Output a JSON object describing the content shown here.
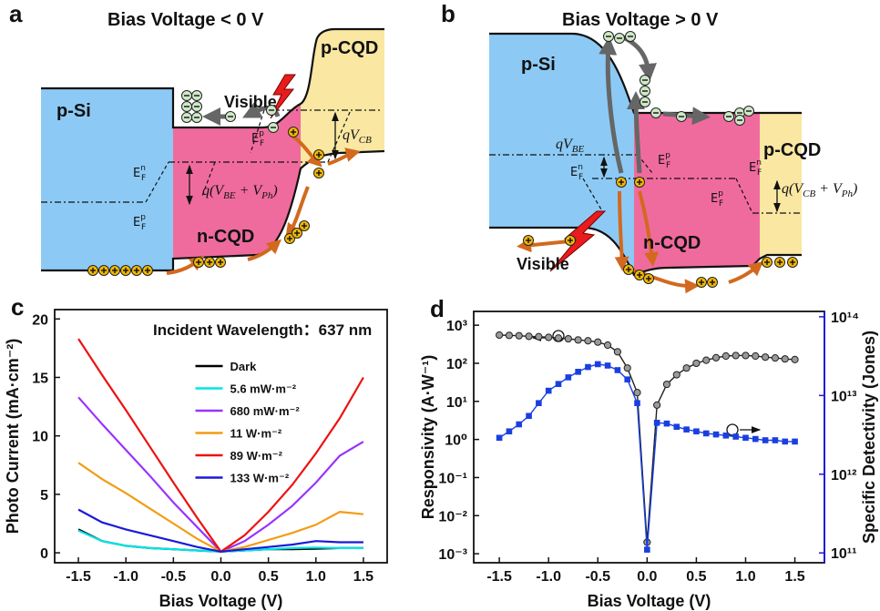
{
  "diagrams": [
    {
      "label": "a",
      "title": "Bias Voltage < 0 V",
      "regions": [
        "p-Si",
        "n-CQD",
        "p-CQD"
      ],
      "light": "Visible",
      "levels": [
        {
          "base": "E",
          "sup": "n",
          "sub": "F"
        },
        {
          "base": "E",
          "sup": "p",
          "sub": "F"
        },
        {
          "base": "E",
          "sup": "p",
          "sub": "F"
        }
      ],
      "voltages": [
        [
          "qV",
          "CB"
        ],
        [
          "q(V",
          "BE",
          " + V",
          "Ph",
          ")"
        ]
      ]
    },
    {
      "label": "b",
      "title": "Bias Voltage > 0 V",
      "regions": [
        "p-Si",
        "n-CQD",
        "p-CQD"
      ],
      "light": "Visible",
      "levels": [
        {
          "base": "E",
          "sup": "n",
          "sub": "F"
        },
        {
          "base": "E",
          "sup": "p",
          "sub": "F"
        },
        {
          "base": "E",
          "sup": "n",
          "sub": "F"
        },
        {
          "base": "E",
          "sup": "p",
          "sub": "F"
        }
      ],
      "voltages": [
        [
          "qV",
          "BE"
        ],
        [
          "q(V",
          "CB",
          " + V",
          "Ph",
          ")"
        ]
      ]
    }
  ],
  "chart_data": [
    {
      "type": "line",
      "label": "c",
      "title": "Incident Wavelength：637 nm",
      "x_label": "Bias Voltage (V)",
      "y_label": "Photo Current (mA·cm⁻²)",
      "x": [
        -1.5,
        -1.25,
        -1,
        -0.75,
        -0.5,
        -0.25,
        0,
        0.25,
        0.5,
        0.75,
        1,
        1.25,
        1.5
      ],
      "series": [
        {
          "name": "Dark",
          "color": "#000000",
          "values": [
            2.0,
            1.0,
            0.6,
            0.4,
            0.3,
            0.2,
            0.1,
            0.2,
            0.3,
            0.3,
            0.35,
            0.4,
            0.4
          ]
        },
        {
          "name": "5.6 mW·m⁻²",
          "color": "#00e5e5",
          "values": [
            1.9,
            1.0,
            0.6,
            0.4,
            0.3,
            0.2,
            0.1,
            0.2,
            0.3,
            0.4,
            0.45,
            0.4,
            0.4
          ]
        },
        {
          "name": "680 mW·m⁻²",
          "color": "#9933ff",
          "values": [
            13.3,
            11.0,
            8.8,
            6.6,
            4.3,
            2.2,
            0.1,
            1.0,
            2.4,
            4.0,
            6.0,
            8.3,
            9.5
          ]
        },
        {
          "name": "11 W·m⁻²",
          "color": "#f39c12",
          "values": [
            7.7,
            6.3,
            5.1,
            3.8,
            2.5,
            1.2,
            0.1,
            0.5,
            1.1,
            1.7,
            2.4,
            3.5,
            3.3
          ]
        },
        {
          "name": "89 W·m⁻²",
          "color": "#ee1111",
          "values": [
            18.3,
            15.2,
            12.2,
            9.1,
            6.0,
            3.0,
            0.1,
            1.5,
            3.5,
            5.8,
            8.5,
            11.5,
            15.0
          ]
        },
        {
          "name": "133 W·m⁻²",
          "color": "#1a1ad9",
          "values": [
            3.7,
            2.6,
            2.0,
            1.5,
            1.0,
            0.5,
            0.1,
            0.3,
            0.5,
            0.7,
            1.0,
            0.9,
            0.9
          ]
        }
      ],
      "xlim": [
        -1.75,
        1.75
      ],
      "ylim": [
        -0.85,
        20.8
      ],
      "xticks": [
        -1.5,
        {
          "value": -1,
          "label": "-1.0"
        },
        -0.5,
        {
          "value": 0,
          "label": "0.0"
        },
        0.5,
        {
          "value": 1,
          "label": "1.0"
        },
        1.5
      ],
      "yticks": [
        0,
        5,
        10,
        15,
        20
      ],
      "legend": "upper center"
    },
    {
      "type": "line",
      "label": "d",
      "x_label": "Bias Voltage (V)",
      "y_label": "Responsivity (A·W⁻¹)",
      "y2_label": "Specific Detectivity (Jones)",
      "y2_color": "#1a1ad9",
      "x": [
        -1.5,
        -1.4,
        -1.3,
        -1.2,
        -1.1,
        -1,
        -0.9,
        -0.8,
        -0.7,
        -0.6,
        -0.5,
        -0.4,
        -0.3,
        -0.2,
        -0.1,
        0,
        0.1,
        0.2,
        0.3,
        0.4,
        0.5,
        0.6,
        0.7,
        0.8,
        0.9,
        1,
        1.1,
        1.2,
        1.3,
        1.4,
        1.5
      ],
      "series": [
        {
          "color": "#222222",
          "marker": "circle",
          "values": [
            550,
            540,
            530,
            510,
            500,
            480,
            460,
            440,
            410,
            390,
            360,
            300,
            200,
            75,
            17,
            0.002,
            8,
            28,
            50,
            75,
            100,
            120,
            140,
            155,
            160,
            160,
            155,
            145,
            138,
            130,
            125
          ]
        },
        {
          "color": "#1a3fe0",
          "marker": "square",
          "axis": "y2",
          "values": [
            2900000000000.0,
            3500000000000.0,
            4300000000000.0,
            5500000000000.0,
            8000000000000.0,
            11500000000000.0,
            14000000000000.0,
            17000000000000.0,
            20000000000000.0,
            23000000000000.0,
            25000000000000.0,
            24000000000000.0,
            21000000000000.0,
            16000000000000.0,
            8000000000000.0,
            110000000000.0,
            4500000000000.0,
            4400000000000.0,
            4000000000000.0,
            3700000000000.0,
            3500000000000.0,
            3300000000000.0,
            3200000000000.0,
            3100000000000.0,
            3000000000000.0,
            2900000000000.0,
            2800000000000.0,
            2700000000000.0,
            2700000000000.0,
            2600000000000.0,
            2600000000000.0
          ]
        }
      ],
      "xlim": [
        -1.76,
        1.8
      ],
      "ylim": [
        0.00058,
        2300
      ],
      "ylog": true,
      "y2lim": [
        75000000000.0,
        117000000000000.0
      ],
      "y2log": true,
      "xticks": [
        -1.5,
        {
          "value": -1,
          "label": "-1.0"
        },
        -0.5,
        {
          "value": 0,
          "label": "0.0"
        },
        0.5,
        {
          "value": 1,
          "label": "1.0"
        },
        1.5
      ],
      "yticks": [
        {
          "value": 0.001,
          "label": "10⁻³"
        },
        {
          "value": 0.01,
          "label": "10⁻²"
        },
        {
          "value": 0.1,
          "label": "10⁻¹"
        },
        {
          "value": 1,
          "label": "10⁰"
        },
        {
          "value": 10,
          "label": "10¹"
        },
        {
          "value": 100,
          "label": "10²"
        },
        {
          "value": 1000,
          "label": "10³"
        }
      ],
      "y2ticks": [
        {
          "value": 100000000000.0,
          "label": "10¹¹"
        },
        {
          "value": 1000000000000.0,
          "label": "10¹²"
        },
        {
          "value": 10000000000000.0,
          "label": "10¹³"
        },
        {
          "value": 100000000000000.0,
          "label": "10¹⁴"
        }
      ]
    }
  ]
}
